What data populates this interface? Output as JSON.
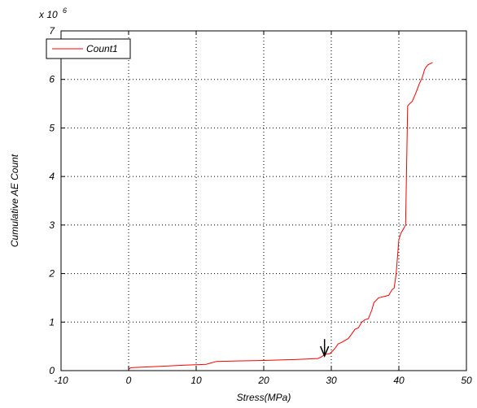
{
  "chart_data": {
    "type": "line",
    "title": "",
    "xlabel": "Stress(MPa)",
    "ylabel": "Cumulative AE Count",
    "y_multiplier_label": "x 10",
    "y_multiplier_exponent": "6",
    "xlim": [
      -10,
      50
    ],
    "ylim": [
      0,
      7
    ],
    "x_ticks": [
      "-10",
      "0",
      "10",
      "20",
      "30",
      "40",
      "50"
    ],
    "y_ticks": [
      "0",
      "1",
      "2",
      "3",
      "4",
      "5",
      "6",
      "7"
    ],
    "grid": true,
    "legend_position": "top-left",
    "series": [
      {
        "name": "Count1",
        "color": "#ff0000",
        "x": [
          0,
          0.3,
          2,
          5,
          8,
          11.5,
          12,
          13,
          16,
          20,
          25,
          28,
          28.5,
          29,
          29.8,
          30.5,
          31,
          31.5,
          32.5,
          33,
          33.5,
          34,
          34.5,
          35,
          35.5,
          36,
          36.3,
          37,
          38.5,
          39,
          39.3,
          39.6,
          40,
          40.3,
          40.6,
          41,
          41.3,
          41.6,
          42,
          42.6,
          43,
          43.5,
          43.8,
          44,
          44.3,
          45
        ],
        "y": [
          0.02,
          0.06,
          0.07,
          0.09,
          0.11,
          0.13,
          0.15,
          0.19,
          0.2,
          0.21,
          0.23,
          0.25,
          0.28,
          0.33,
          0.35,
          0.45,
          0.55,
          0.58,
          0.66,
          0.75,
          0.85,
          0.88,
          1.0,
          1.05,
          1.07,
          1.25,
          1.4,
          1.5,
          1.55,
          1.67,
          1.7,
          2.0,
          2.7,
          2.83,
          2.9,
          3.0,
          5.45,
          5.5,
          5.55,
          5.75,
          5.9,
          6.05,
          6.2,
          6.25,
          6.3,
          6.35
        ]
      }
    ],
    "annotations": [
      {
        "type": "arrow",
        "x": 29,
        "y_from": 0.65,
        "y_to": 0.3
      }
    ]
  }
}
